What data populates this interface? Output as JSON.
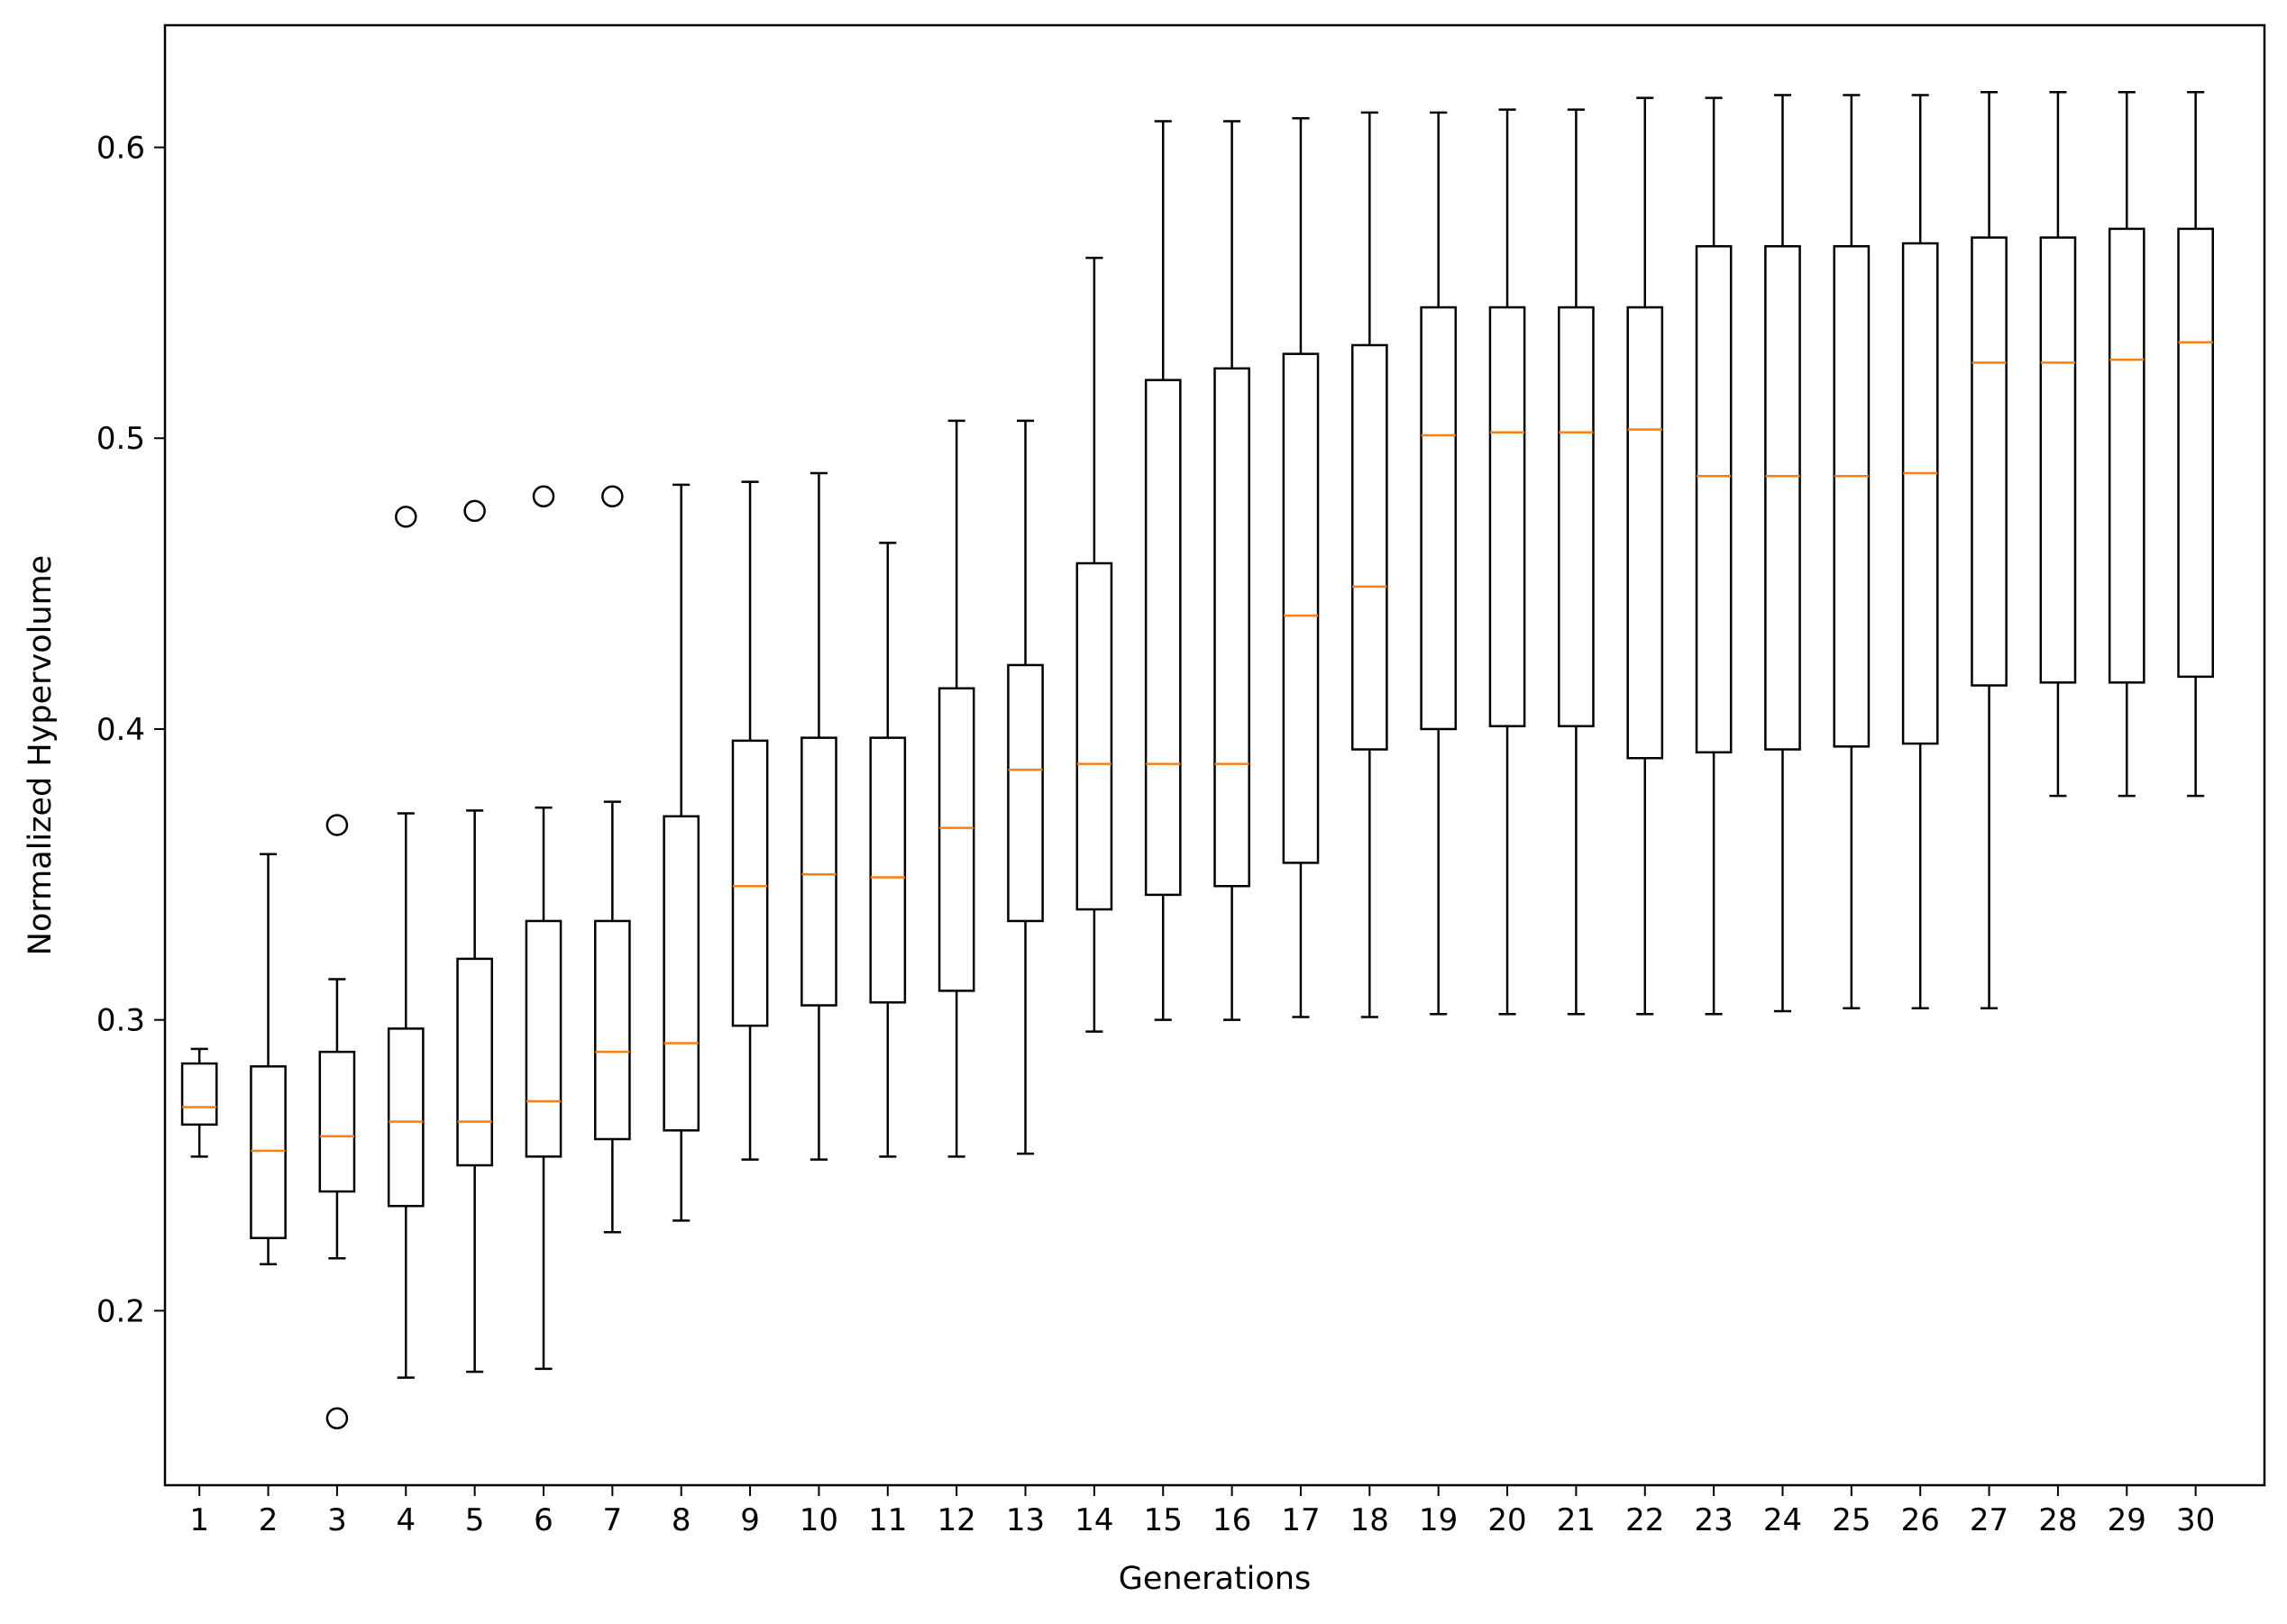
{
  "chart_data": {
    "type": "box",
    "xlabel": "Generations",
    "ylabel": "Normalized Hypervolume",
    "ylim": [
      0.14,
      0.642
    ],
    "yticks": [
      0.2,
      0.3,
      0.4,
      0.5,
      0.6
    ],
    "ytick_labels": [
      "0.2",
      "0.3",
      "0.4",
      "0.5",
      "0.6"
    ],
    "categories": [
      "1",
      "2",
      "3",
      "4",
      "5",
      "6",
      "7",
      "8",
      "9",
      "10",
      "11",
      "12",
      "13",
      "14",
      "15",
      "16",
      "17",
      "18",
      "19",
      "20",
      "21",
      "22",
      "23",
      "24",
      "25",
      "26",
      "27",
      "28",
      "29",
      "30"
    ],
    "grid": false,
    "colors": {
      "box": "#000000",
      "median": "#ff7f0e",
      "flier": "#000000"
    },
    "boxes": [
      {
        "whisker_low": 0.253,
        "q1": 0.264,
        "median": 0.27,
        "q3": 0.285,
        "whisker_high": 0.29,
        "fliers": []
      },
      {
        "whisker_low": 0.216,
        "q1": 0.225,
        "median": 0.255,
        "q3": 0.284,
        "whisker_high": 0.357,
        "fliers": []
      },
      {
        "whisker_low": 0.218,
        "q1": 0.241,
        "median": 0.26,
        "q3": 0.289,
        "whisker_high": 0.314,
        "fliers": [
          0.367,
          0.163
        ]
      },
      {
        "whisker_low": 0.177,
        "q1": 0.236,
        "median": 0.265,
        "q3": 0.297,
        "whisker_high": 0.371,
        "fliers": [
          0.473
        ]
      },
      {
        "whisker_low": 0.179,
        "q1": 0.25,
        "median": 0.265,
        "q3": 0.321,
        "whisker_high": 0.372,
        "fliers": [
          0.475
        ]
      },
      {
        "whisker_low": 0.18,
        "q1": 0.253,
        "median": 0.272,
        "q3": 0.334,
        "whisker_high": 0.373,
        "fliers": [
          0.48
        ]
      },
      {
        "whisker_low": 0.227,
        "q1": 0.259,
        "median": 0.289,
        "q3": 0.334,
        "whisker_high": 0.375,
        "fliers": [
          0.48
        ]
      },
      {
        "whisker_low": 0.231,
        "q1": 0.262,
        "median": 0.292,
        "q3": 0.37,
        "whisker_high": 0.484,
        "fliers": []
      },
      {
        "whisker_low": 0.252,
        "q1": 0.298,
        "median": 0.346,
        "q3": 0.396,
        "whisker_high": 0.485,
        "fliers": []
      },
      {
        "whisker_low": 0.252,
        "q1": 0.305,
        "median": 0.35,
        "q3": 0.397,
        "whisker_high": 0.488,
        "fliers": []
      },
      {
        "whisker_low": 0.253,
        "q1": 0.306,
        "median": 0.349,
        "q3": 0.397,
        "whisker_high": 0.464,
        "fliers": []
      },
      {
        "whisker_low": 0.253,
        "q1": 0.31,
        "median": 0.366,
        "q3": 0.414,
        "whisker_high": 0.506,
        "fliers": []
      },
      {
        "whisker_low": 0.254,
        "q1": 0.334,
        "median": 0.386,
        "q3": 0.422,
        "whisker_high": 0.506,
        "fliers": []
      },
      {
        "whisker_low": 0.296,
        "q1": 0.338,
        "median": 0.388,
        "q3": 0.457,
        "whisker_high": 0.562,
        "fliers": []
      },
      {
        "whisker_low": 0.3,
        "q1": 0.343,
        "median": 0.388,
        "q3": 0.52,
        "whisker_high": 0.609,
        "fliers": []
      },
      {
        "whisker_low": 0.3,
        "q1": 0.346,
        "median": 0.388,
        "q3": 0.524,
        "whisker_high": 0.609,
        "fliers": []
      },
      {
        "whisker_low": 0.301,
        "q1": 0.354,
        "median": 0.439,
        "q3": 0.529,
        "whisker_high": 0.61,
        "fliers": []
      },
      {
        "whisker_low": 0.301,
        "q1": 0.393,
        "median": 0.449,
        "q3": 0.532,
        "whisker_high": 0.612,
        "fliers": []
      },
      {
        "whisker_low": 0.302,
        "q1": 0.4,
        "median": 0.501,
        "q3": 0.545,
        "whisker_high": 0.612,
        "fliers": []
      },
      {
        "whisker_low": 0.302,
        "q1": 0.401,
        "median": 0.502,
        "q3": 0.545,
        "whisker_high": 0.613,
        "fliers": []
      },
      {
        "whisker_low": 0.302,
        "q1": 0.401,
        "median": 0.502,
        "q3": 0.545,
        "whisker_high": 0.613,
        "fliers": []
      },
      {
        "whisker_low": 0.302,
        "q1": 0.39,
        "median": 0.503,
        "q3": 0.545,
        "whisker_high": 0.617,
        "fliers": []
      },
      {
        "whisker_low": 0.302,
        "q1": 0.392,
        "median": 0.487,
        "q3": 0.566,
        "whisker_high": 0.617,
        "fliers": []
      },
      {
        "whisker_low": 0.303,
        "q1": 0.393,
        "median": 0.487,
        "q3": 0.566,
        "whisker_high": 0.618,
        "fliers": []
      },
      {
        "whisker_low": 0.304,
        "q1": 0.394,
        "median": 0.487,
        "q3": 0.566,
        "whisker_high": 0.618,
        "fliers": []
      },
      {
        "whisker_low": 0.304,
        "q1": 0.395,
        "median": 0.488,
        "q3": 0.567,
        "whisker_high": 0.618,
        "fliers": []
      },
      {
        "whisker_low": 0.304,
        "q1": 0.415,
        "median": 0.526,
        "q3": 0.569,
        "whisker_high": 0.619,
        "fliers": []
      },
      {
        "whisker_low": 0.377,
        "q1": 0.416,
        "median": 0.526,
        "q3": 0.569,
        "whisker_high": 0.619,
        "fliers": []
      },
      {
        "whisker_low": 0.377,
        "q1": 0.416,
        "median": 0.527,
        "q3": 0.572,
        "whisker_high": 0.619,
        "fliers": []
      },
      {
        "whisker_low": 0.377,
        "q1": 0.418,
        "median": 0.533,
        "q3": 0.572,
        "whisker_high": 0.619,
        "fliers": []
      }
    ]
  }
}
